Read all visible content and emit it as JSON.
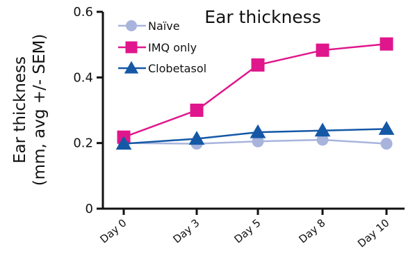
{
  "chart_data": {
    "type": "line",
    "title": "Ear thickness",
    "ylabel_line1": "Ear thickness",
    "ylabel_line2": "(mm, avg +/- SEM)",
    "xlabel": "",
    "categories": [
      "Day 0",
      "Day 3",
      "Day 5",
      "Day 8",
      "Day 10"
    ],
    "ylim": [
      0,
      0.6
    ],
    "yticks": [
      {
        "value": 0,
        "label": "0"
      },
      {
        "value": 0.2,
        "label": "0.2"
      },
      {
        "value": 0.4,
        "label": "0.4"
      },
      {
        "value": 0.6,
        "label": "0.6"
      }
    ],
    "grid": false,
    "legend_position": "top-left",
    "series": [
      {
        "name": "Naïve",
        "color": "#a8b4dc",
        "marker": "circle",
        "values": [
          0.2,
          0.198,
          0.205,
          0.21,
          0.198
        ]
      },
      {
        "name": "IMQ only",
        "color": "#e0168c",
        "marker": "square",
        "values": [
          0.218,
          0.3,
          0.438,
          0.483,
          0.502
        ]
      },
      {
        "name": "Clobetasol",
        "color": "#1558a6",
        "marker": "triangle",
        "values": [
          0.198,
          0.213,
          0.233,
          0.238,
          0.243
        ]
      }
    ]
  }
}
